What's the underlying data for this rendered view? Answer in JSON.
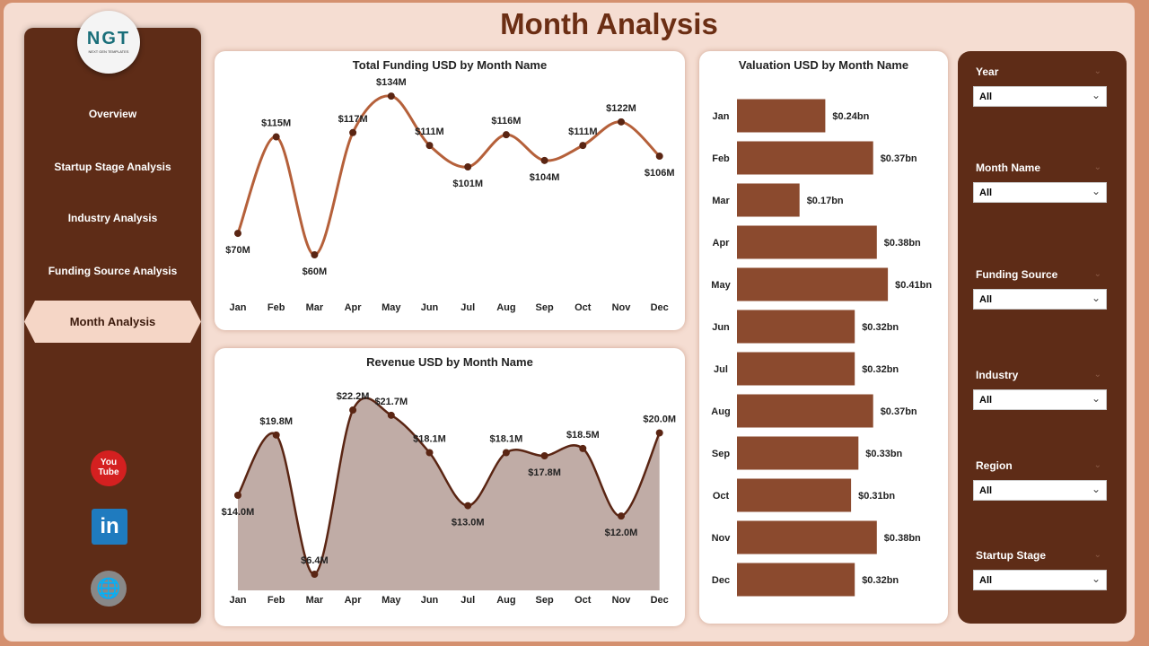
{
  "page": {
    "title": "Month Analysis"
  },
  "logo": {
    "text": "NGT",
    "subtext": "NEXT GEN TEMPLATES"
  },
  "nav": [
    {
      "label": "Overview"
    },
    {
      "label": "Startup Stage Analysis"
    },
    {
      "label": "Industry Analysis"
    },
    {
      "label": "Funding Source Analysis"
    },
    {
      "label": "Month Analysis",
      "active": true
    }
  ],
  "social": {
    "youtube": "You Tube",
    "linkedin": "in"
  },
  "filters": [
    {
      "label": "Year",
      "value": "All"
    },
    {
      "label": "Month Name",
      "value": "All"
    },
    {
      "label": "Funding Source",
      "value": "All"
    },
    {
      "label": "Industry",
      "value": "All"
    },
    {
      "label": "Region",
      "value": "All"
    },
    {
      "label": "Startup Stage",
      "value": "All"
    }
  ],
  "colors": {
    "sidebar": "#5e2c17",
    "line": "#b5603a",
    "area": "#c0aca6",
    "bar": "#8b4a2e",
    "title": "#6b2e14"
  },
  "chart_data": [
    {
      "type": "line",
      "title": "Total Funding USD by Month Name",
      "categories": [
        "Jan",
        "Feb",
        "Mar",
        "Apr",
        "May",
        "Jun",
        "Jul",
        "Aug",
        "Sep",
        "Oct",
        "Nov",
        "Dec"
      ],
      "values": [
        70,
        115,
        60,
        117,
        134,
        111,
        101,
        116,
        104,
        111,
        122,
        106
      ],
      "labels": [
        "$70M",
        "$115M",
        "$60M",
        "$117M",
        "$134M",
        "$111M",
        "$101M",
        "$116M",
        "$104M",
        "$111M",
        "$122M",
        "$106M"
      ],
      "unit": "USD millions"
    },
    {
      "type": "area",
      "title": "Revenue USD by Month Name",
      "categories": [
        "Jan",
        "Feb",
        "Mar",
        "Apr",
        "May",
        "Jun",
        "Jul",
        "Aug",
        "Sep",
        "Oct",
        "Nov",
        "Dec"
      ],
      "values": [
        14.0,
        19.8,
        6.4,
        22.2,
        21.7,
        18.1,
        13.0,
        18.1,
        17.8,
        18.5,
        12.0,
        20.0
      ],
      "labels": [
        "$14.0M",
        "$19.8M",
        "$6.4M",
        "$22.2M",
        "$21.7M",
        "$18.1M",
        "$13.0M",
        "$18.1M",
        "$17.8M",
        "$18.5M",
        "$12.0M",
        "$20.0M"
      ],
      "unit": "USD millions"
    },
    {
      "type": "bar",
      "orientation": "horizontal",
      "title": "Valuation USD by Month Name",
      "categories": [
        "Jan",
        "Feb",
        "Mar",
        "Apr",
        "May",
        "Jun",
        "Jul",
        "Aug",
        "Sep",
        "Oct",
        "Nov",
        "Dec"
      ],
      "values": [
        0.24,
        0.37,
        0.17,
        0.38,
        0.41,
        0.32,
        0.32,
        0.37,
        0.33,
        0.31,
        0.38,
        0.32
      ],
      "labels": [
        "$0.24bn",
        "$0.37bn",
        "$0.17bn",
        "$0.38bn",
        "$0.41bn",
        "$0.32bn",
        "$0.32bn",
        "$0.37bn",
        "$0.33bn",
        "$0.31bn",
        "$0.38bn",
        "$0.32bn"
      ],
      "unit": "USD billions"
    }
  ]
}
